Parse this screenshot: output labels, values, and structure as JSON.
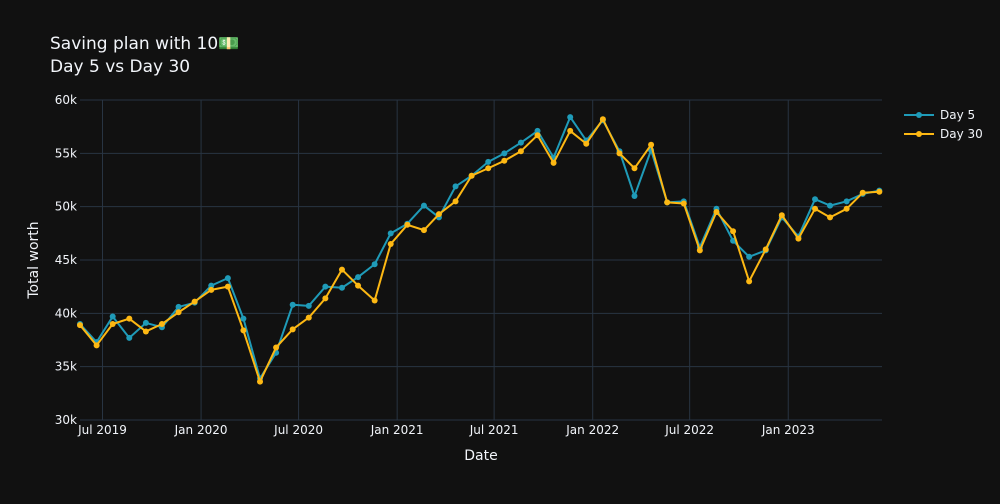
{
  "chart_data": {
    "type": "line",
    "title_line1": "Saving plan with 10💵",
    "title_line2": "Day 5 vs Day 30",
    "xlabel": "Date",
    "ylabel": "Total worth",
    "x_ticks": [
      "Jul 2019",
      "Jan 2020",
      "Jul 2020",
      "Jan 2021",
      "Jul 2021",
      "Jan 2022",
      "Jul 2022",
      "Jan 2023"
    ],
    "y_ticks": [
      "30k",
      "35k",
      "40k",
      "45k",
      "50k",
      "55k",
      "60k"
    ],
    "ylim": [
      30000,
      60000
    ],
    "xlim": [
      "2019-05-20",
      "2023-06-25"
    ],
    "grid": true,
    "legend_position": "top-right",
    "x": [
      "2019-05-20",
      "2019-06-20",
      "2019-07-20",
      "2019-08-20",
      "2019-09-20",
      "2019-10-20",
      "2019-11-20",
      "2019-12-20",
      "2020-01-20",
      "2020-02-20",
      "2020-03-20",
      "2020-04-20",
      "2020-05-20",
      "2020-06-20",
      "2020-07-20",
      "2020-08-20",
      "2020-09-20",
      "2020-10-20",
      "2020-11-20",
      "2020-12-20",
      "2021-01-20",
      "2021-02-20",
      "2021-03-20",
      "2021-04-20",
      "2021-05-20",
      "2021-06-20",
      "2021-07-20",
      "2021-08-20",
      "2021-09-20",
      "2021-10-20",
      "2021-11-20",
      "2021-12-20",
      "2022-01-20",
      "2022-02-20",
      "2022-03-20",
      "2022-04-20",
      "2022-05-20",
      "2022-06-20",
      "2022-07-20",
      "2022-08-20",
      "2022-09-20",
      "2022-10-20",
      "2022-11-20",
      "2022-12-20",
      "2023-01-20",
      "2023-02-20",
      "2023-03-20",
      "2023-04-20",
      "2023-05-20",
      "2023-06-20"
    ],
    "series": [
      {
        "name": "Day 5",
        "color": "#1f9bb8",
        "values": [
          39000,
          37300,
          39700,
          37700,
          39100,
          38700,
          40600,
          41000,
          42600,
          43300,
          39500,
          33900,
          36300,
          40800,
          40700,
          42500,
          42400,
          43400,
          44600,
          47500,
          48400,
          50100,
          49000,
          51900,
          52900,
          54200,
          55000,
          56000,
          57100,
          54600,
          58400,
          56200,
          58100,
          55200,
          51000,
          55300,
          50400,
          50500,
          46200,
          49800,
          46800,
          45300,
          45900,
          49000,
          47200,
          50700,
          50100,
          50500,
          51200,
          51500
        ]
      },
      {
        "name": "Day 30",
        "color": "#fdb813",
        "values": [
          38900,
          37000,
          39000,
          39500,
          38300,
          39000,
          40100,
          41100,
          42200,
          42500,
          38400,
          33600,
          36800,
          38500,
          39600,
          41400,
          44100,
          42600,
          41200,
          46500,
          48300,
          47800,
          49300,
          50500,
          52900,
          53600,
          54300,
          55200,
          56700,
          54100,
          57100,
          55900,
          58200,
          55000,
          53600,
          55800,
          50400,
          50300,
          45900,
          49500,
          47700,
          43000,
          46000,
          49200,
          47000,
          49800,
          49000,
          49800,
          51300,
          51400
        ]
      }
    ]
  }
}
